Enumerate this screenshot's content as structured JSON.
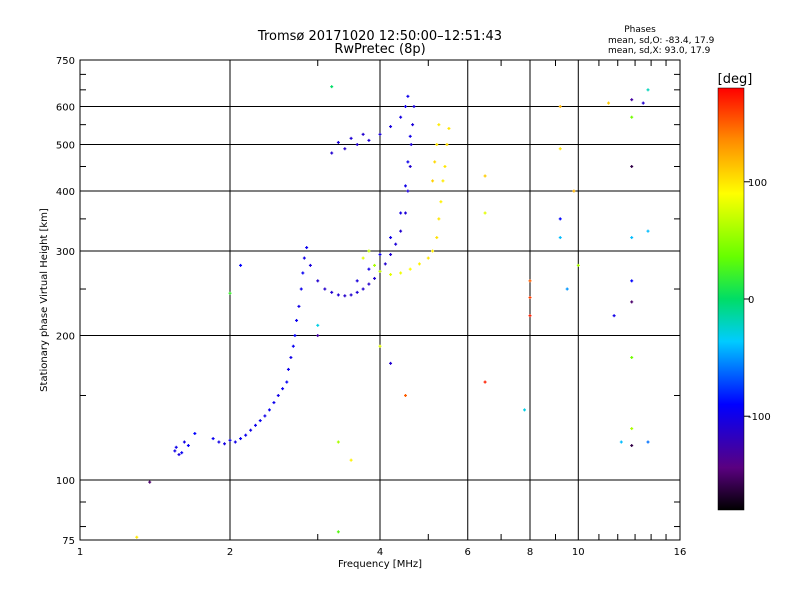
{
  "chart_data": {
    "type": "scatter",
    "title": "Tromsø 20171020 12:50:00–12:51:43",
    "subtitle": "RwPretec (8p)",
    "xlabel": "Frequency [MHz]",
    "ylabel": "Stationary phase Virtual Height [km]",
    "xscale": "log",
    "yscale": "log",
    "xlim": [
      1,
      16
    ],
    "ylim": [
      75,
      750
    ],
    "xticks": [
      1,
      2,
      4,
      6,
      8,
      10,
      16
    ],
    "xtick_labels": [
      "1",
      "2",
      "4",
      "6",
      "8",
      "10",
      "16"
    ],
    "yticks": [
      75,
      100,
      200,
      300,
      400,
      500,
      600,
      750
    ],
    "ytick_labels": [
      "75",
      "100",
      "200",
      "300",
      "400",
      "500",
      "600",
      "750"
    ],
    "grid": true,
    "phases_header": "Phases",
    "phases_o": "mean, sd,O: -83.4, 17.9",
    "phases_x": "mean, sd,X:  93.0, 17.9",
    "colorbar": {
      "label": "[deg]",
      "range": [
        -180,
        180
      ],
      "ticks": [
        100,
        0,
        -100
      ],
      "tick_labels": [
        "100",
        "0",
        "-100"
      ]
    },
    "points": [
      [
        1.55,
        115,
        -100
      ],
      [
        1.56,
        117,
        -98
      ],
      [
        1.58,
        113,
        -104
      ],
      [
        1.6,
        114,
        -95
      ],
      [
        1.62,
        120,
        -100
      ],
      [
        1.65,
        118,
        -92
      ],
      [
        1.7,
        125,
        -90
      ],
      [
        1.85,
        122,
        -96
      ],
      [
        1.9,
        120,
        -100
      ],
      [
        1.95,
        119,
        -102
      ],
      [
        2.0,
        121,
        -98
      ],
      [
        2.05,
        120,
        -100
      ],
      [
        2.1,
        122,
        -95
      ],
      [
        2.15,
        124,
        -97
      ],
      [
        2.2,
        127,
        -100
      ],
      [
        2.25,
        130,
        -98
      ],
      [
        2.3,
        133,
        -96
      ],
      [
        2.35,
        136,
        -100
      ],
      [
        2.4,
        140,
        -95
      ],
      [
        2.45,
        145,
        -98
      ],
      [
        2.5,
        150,
        -100
      ],
      [
        2.55,
        155,
        -96
      ],
      [
        2.6,
        160,
        -94
      ],
      [
        2.62,
        170,
        -98
      ],
      [
        2.65,
        180,
        -100
      ],
      [
        2.68,
        190,
        -95
      ],
      [
        2.7,
        200,
        -92
      ],
      [
        2.72,
        215,
        -96
      ],
      [
        2.75,
        230,
        -100
      ],
      [
        2.78,
        250,
        -98
      ],
      [
        2.8,
        270,
        -95
      ],
      [
        2.82,
        290,
        -100
      ],
      [
        2.85,
        305,
        -96
      ],
      [
        2.9,
        280,
        -105
      ],
      [
        3.0,
        260,
        -110
      ],
      [
        3.1,
        250,
        -112
      ],
      [
        3.2,
        246,
        -110
      ],
      [
        3.3,
        243,
        -108
      ],
      [
        3.4,
        242,
        -112
      ],
      [
        3.5,
        243,
        -110
      ],
      [
        3.6,
        246,
        -108
      ],
      [
        3.7,
        250,
        -110
      ],
      [
        3.8,
        256,
        -112
      ],
      [
        3.9,
        263,
        -110
      ],
      [
        4.0,
        272,
        -108
      ],
      [
        4.1,
        282,
        -110
      ],
      [
        4.2,
        295,
        -108
      ],
      [
        4.3,
        310,
        -106
      ],
      [
        4.4,
        330,
        -110
      ],
      [
        4.5,
        360,
        -108
      ],
      [
        4.55,
        400,
        -106
      ],
      [
        4.6,
        450,
        -110
      ],
      [
        4.62,
        500,
        -108
      ],
      [
        4.65,
        550,
        -106
      ],
      [
        4.68,
        600,
        -104
      ],
      [
        3.6,
        260,
        -105
      ],
      [
        3.8,
        275,
        -100
      ],
      [
        4.0,
        295,
        -98
      ],
      [
        4.2,
        320,
        -100
      ],
      [
        4.4,
        360,
        -102
      ],
      [
        4.5,
        410,
        -100
      ],
      [
        4.55,
        460,
        -98
      ],
      [
        4.6,
        520,
        -100
      ],
      [
        3.2,
        480,
        -110
      ],
      [
        3.4,
        490,
        -112
      ],
      [
        3.6,
        500,
        -110
      ],
      [
        3.8,
        510,
        -108
      ],
      [
        4.0,
        525,
        -106
      ],
      [
        4.2,
        545,
        -104
      ],
      [
        4.4,
        570,
        -102
      ],
      [
        4.5,
        600,
        -100
      ],
      [
        4.55,
        630,
        -98
      ],
      [
        3.3,
        505,
        -106
      ],
      [
        3.5,
        515,
        -108
      ],
      [
        3.7,
        525,
        -110
      ],
      [
        3.9,
        280,
        60
      ],
      [
        4.0,
        272,
        70
      ],
      [
        4.2,
        268,
        80
      ],
      [
        4.4,
        270,
        85
      ],
      [
        4.6,
        275,
        90
      ],
      [
        4.8,
        282,
        95
      ],
      [
        5.0,
        290,
        100
      ],
      [
        5.1,
        300,
        98
      ],
      [
        5.2,
        320,
        102
      ],
      [
        5.25,
        350,
        100
      ],
      [
        5.3,
        380,
        95
      ],
      [
        5.35,
        420,
        98
      ],
      [
        5.4,
        450,
        100
      ],
      [
        5.45,
        500,
        103
      ],
      [
        5.5,
        540,
        100
      ],
      [
        5.1,
        420,
        108
      ],
      [
        5.15,
        460,
        105
      ],
      [
        5.2,
        500,
        100
      ],
      [
        5.25,
        550,
        98
      ],
      [
        3.8,
        300,
        70
      ],
      [
        3.7,
        290,
        80
      ],
      [
        1.38,
        99,
        -150
      ],
      [
        3.0,
        200,
        -130
      ],
      [
        2.0,
        245,
        20
      ],
      [
        2.1,
        280,
        -90
      ],
      [
        3.2,
        660,
        0
      ],
      [
        3.3,
        120,
        60
      ],
      [
        3.0,
        210,
        -30
      ],
      [
        4.0,
        190,
        80
      ],
      [
        4.2,
        175,
        -110
      ],
      [
        4.5,
        150,
        150
      ],
      [
        6.5,
        430,
        110
      ],
      [
        6.5,
        360,
        80
      ],
      [
        6.5,
        160,
        170
      ],
      [
        7.8,
        140,
        -30
      ],
      [
        8.0,
        260,
        150
      ],
      [
        8.0,
        240,
        160
      ],
      [
        8.0,
        220,
        170
      ],
      [
        9.2,
        600,
        120
      ],
      [
        9.2,
        490,
        100
      ],
      [
        9.2,
        350,
        -90
      ],
      [
        9.2,
        320,
        -40
      ],
      [
        9.5,
        250,
        -50
      ],
      [
        9.8,
        400,
        120
      ],
      [
        10.0,
        280,
        60
      ],
      [
        11.5,
        610,
        110
      ],
      [
        11.8,
        220,
        -100
      ],
      [
        12.2,
        120,
        -40
      ],
      [
        12.8,
        620,
        -130
      ],
      [
        12.8,
        570,
        40
      ],
      [
        12.8,
        450,
        -160
      ],
      [
        12.8,
        320,
        -40
      ],
      [
        12.8,
        260,
        -90
      ],
      [
        12.8,
        235,
        -150
      ],
      [
        12.8,
        180,
        40
      ],
      [
        12.8,
        128,
        60
      ],
      [
        12.8,
        118,
        -160
      ],
      [
        13.8,
        650,
        -20
      ],
      [
        13.8,
        330,
        -40
      ],
      [
        13.8,
        120,
        -60
      ],
      [
        13.5,
        610,
        -110
      ],
      [
        1.3,
        76,
        100
      ],
      [
        3.3,
        78,
        30
      ],
      [
        3.5,
        110,
        95
      ]
    ]
  }
}
